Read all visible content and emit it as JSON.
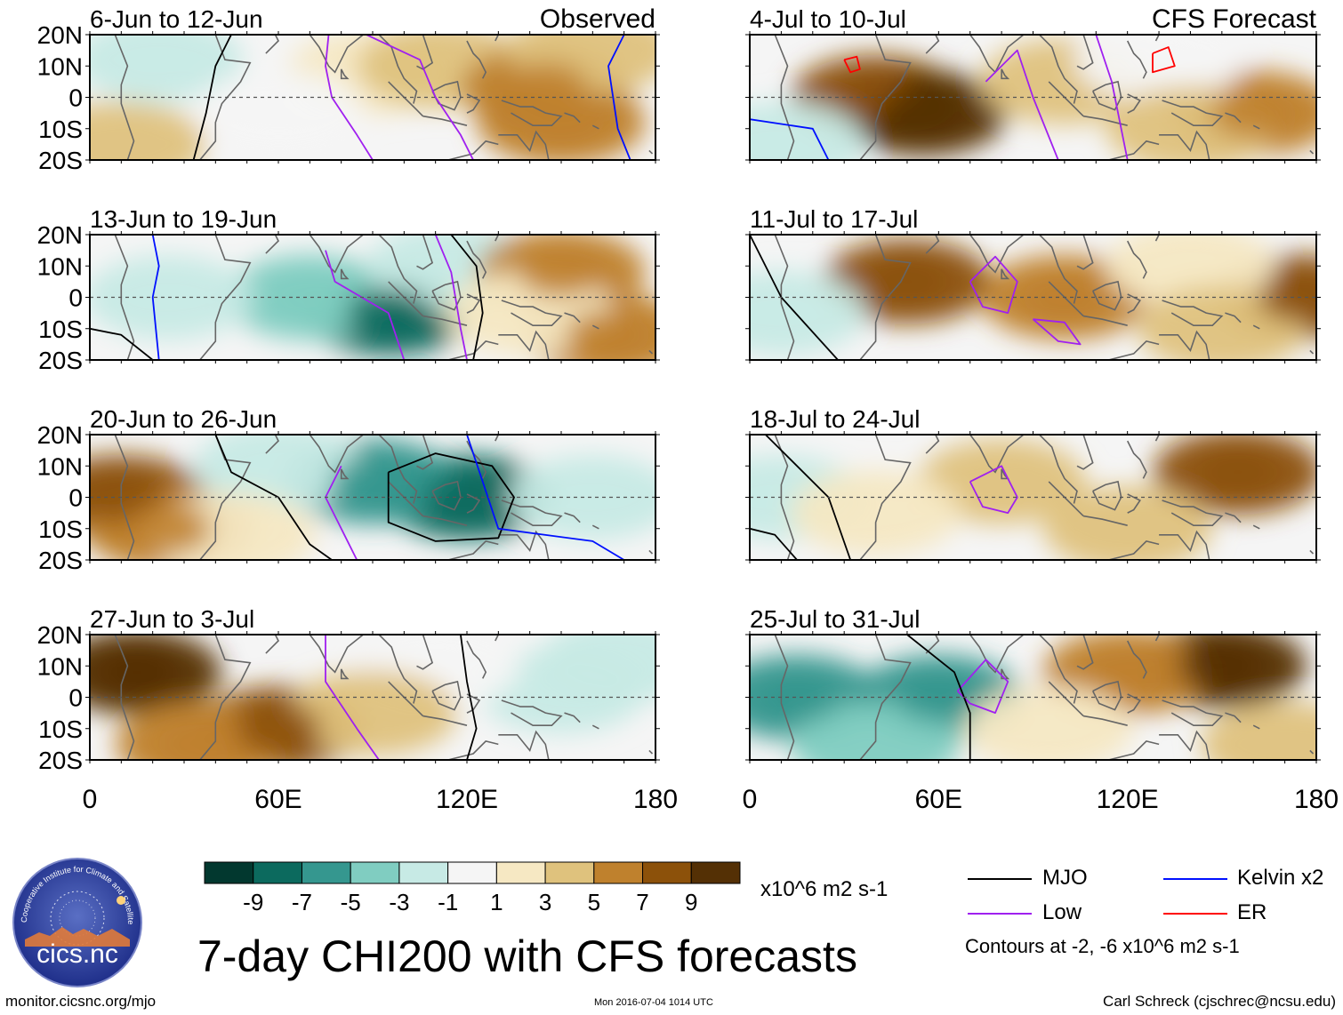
{
  "chart_data": {
    "type": "heatmap",
    "title": "7-day CHI200 with CFS forecasts",
    "units": "x10^6 m2 s-1",
    "lat_ticks": [
      "20N",
      "10N",
      "0",
      "10S",
      "20S"
    ],
    "lat_values": [
      20,
      10,
      0,
      -10,
      -20
    ],
    "lon_ticks": [
      "0",
      "60E",
      "120E",
      "180"
    ],
    "lon_values": [
      0,
      60,
      120,
      180
    ],
    "xlim": [
      0,
      180
    ],
    "ylim": [
      -20,
      20
    ],
    "colorbar": {
      "labels": [
        "-9",
        "-7",
        "-5",
        "-3",
        "-1",
        "1",
        "3",
        "5",
        "7",
        "9"
      ],
      "levels": [
        -9,
        -7,
        -5,
        -3,
        -1,
        1,
        3,
        5,
        7,
        9
      ],
      "colors": [
        "#02382f",
        "#0c6a5e",
        "#35978f",
        "#80cdc1",
        "#c7eae5",
        "#f5f5f5",
        "#f6e8c3",
        "#dfc27d",
        "#bf812d",
        "#8c510a",
        "#543005"
      ]
    },
    "columns": [
      {
        "header": "Observed",
        "panels": [
          "6-Jun to 12-Jun",
          "13-Jun to 19-Jun",
          "20-Jun to 26-Jun",
          "27-Jun to 3-Jul"
        ]
      },
      {
        "header": "CFS Forecast",
        "panels": [
          "4-Jul to 10-Jul",
          "11-Jul to 17-Jul",
          "18-Jul to 24-Jul",
          "25-Jul to 31-Jul"
        ]
      }
    ],
    "anomaly_centers": [
      [
        [
          {
            "lon": 22,
            "lat": 12,
            "v": -3
          },
          {
            "lon": 90,
            "lat": 8,
            "v": 2
          },
          {
            "lon": 112,
            "lat": 10,
            "v": 3
          },
          {
            "lon": 145,
            "lat": 3,
            "v": 5
          },
          {
            "lon": 150,
            "lat": -8,
            "v": 6
          },
          {
            "lon": 10,
            "lat": -15,
            "v": 4
          },
          {
            "lon": 60,
            "lat": -5,
            "v": 0
          },
          {
            "lon": 160,
            "lat": 15,
            "v": 4
          }
        ],
        [
          {
            "lon": 95,
            "lat": -5,
            "v": -9
          },
          {
            "lon": 70,
            "lat": 0,
            "v": -5
          },
          {
            "lon": 25,
            "lat": 0,
            "v": -3
          },
          {
            "lon": 115,
            "lat": 10,
            "v": -3
          },
          {
            "lon": 150,
            "lat": 8,
            "v": 6
          },
          {
            "lon": 165,
            "lat": -12,
            "v": 6
          },
          {
            "lon": 140,
            "lat": -5,
            "v": 2
          }
        ],
        [
          {
            "lon": 120,
            "lat": 0,
            "v": -9
          },
          {
            "lon": 90,
            "lat": 5,
            "v": -6
          },
          {
            "lon": 60,
            "lat": 10,
            "v": -3
          },
          {
            "lon": 10,
            "lat": 0,
            "v": 7
          },
          {
            "lon": 25,
            "lat": -10,
            "v": 6
          },
          {
            "lon": 160,
            "lat": 0,
            "v": -3
          },
          {
            "lon": 45,
            "lat": -12,
            "v": 1
          }
        ],
        [
          {
            "lon": 15,
            "lat": 8,
            "v": 9
          },
          {
            "lon": 60,
            "lat": -10,
            "v": 7
          },
          {
            "lon": 35,
            "lat": -15,
            "v": 6
          },
          {
            "lon": 150,
            "lat": 2,
            "v": -3
          },
          {
            "lon": 110,
            "lat": 10,
            "v": 0
          },
          {
            "lon": 90,
            "lat": -5,
            "v": 4
          },
          {
            "lon": 170,
            "lat": 12,
            "v": -2
          }
        ]
      ],
      [
        [
          {
            "lon": 40,
            "lat": 0,
            "v": 7
          },
          {
            "lon": 55,
            "lat": -5,
            "v": 9
          },
          {
            "lon": 100,
            "lat": 5,
            "v": 4
          },
          {
            "lon": 160,
            "lat": -5,
            "v": 6
          },
          {
            "lon": 10,
            "lat": -15,
            "v": -3
          },
          {
            "lon": 130,
            "lat": 12,
            "v": 0
          },
          {
            "lon": 140,
            "lat": -10,
            "v": 3
          }
        ],
        [
          {
            "lon": 50,
            "lat": 5,
            "v": 7
          },
          {
            "lon": 100,
            "lat": 0,
            "v": 5
          },
          {
            "lon": 175,
            "lat": 0,
            "v": 7
          },
          {
            "lon": 10,
            "lat": -5,
            "v": -2
          },
          {
            "lon": 140,
            "lat": 10,
            "v": 2
          },
          {
            "lon": 150,
            "lat": -10,
            "v": 3
          }
        ],
        [
          {
            "lon": 155,
            "lat": 8,
            "v": 7
          },
          {
            "lon": 80,
            "lat": 5,
            "v": 4
          },
          {
            "lon": 10,
            "lat": 0,
            "v": -3
          },
          {
            "lon": 120,
            "lat": -10,
            "v": 3
          },
          {
            "lon": 40,
            "lat": -5,
            "v": 1
          }
        ],
        [
          {
            "lon": 150,
            "lat": 10,
            "v": 9
          },
          {
            "lon": 120,
            "lat": 8,
            "v": 5
          },
          {
            "lon": 15,
            "lat": 0,
            "v": -6
          },
          {
            "lon": 60,
            "lat": 0,
            "v": -7
          },
          {
            "lon": 40,
            "lat": -15,
            "v": -4
          },
          {
            "lon": 95,
            "lat": -10,
            "v": 1
          },
          {
            "lon": 170,
            "lat": -15,
            "v": 4
          }
        ]
      ]
    ]
  },
  "legend": {
    "mjo": "MJO",
    "kelvin": "Kelvin x2",
    "low": "Low",
    "er": "ER",
    "colors": {
      "mjo": "#000000",
      "kelvin": "#0010ff",
      "low": "#a020f0",
      "er": "#ff0000"
    },
    "contour_note": "Contours at -2, -6 x10^6 m2 s-1"
  },
  "footer": {
    "url": "monitor.cicsnc.org/mjo",
    "timestamp": "Mon 2016-07-04 1014 UTC",
    "credit": "Carl Schreck (cjschrec@ncsu.edu)"
  },
  "logo": {
    "text": "cics.nc",
    "ring_text": "Cooperative Institute for Climate and Satellites"
  }
}
